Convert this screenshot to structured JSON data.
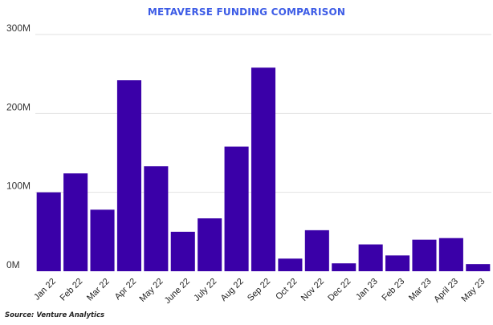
{
  "chart_data": {
    "type": "bar",
    "title": "METAVERSE FUNDING COMPARISON",
    "xlabel": "",
    "ylabel": "",
    "categories": [
      "Jan 22",
      "Feb 22",
      "Mar 22",
      "Apr 22",
      "May 22",
      "June 22",
      "July 22",
      "Aug 22",
      "Sep 22",
      "Oct 22",
      "Nov 22",
      "Dec 22",
      "Jan 23",
      "Feb 23",
      "Mar 23",
      "April 23",
      "May 23"
    ],
    "values": [
      100,
      124,
      78,
      242,
      133,
      50,
      67,
      158,
      258,
      16,
      52,
      10,
      34,
      20,
      40,
      42,
      9
    ],
    "unit": "M",
    "ylim": [
      0,
      300
    ],
    "yticks": [
      0,
      100,
      200,
      300
    ],
    "ytick_labels": [
      "0M",
      "100M",
      "200M",
      "300M"
    ],
    "grid": true,
    "legend": "none"
  },
  "source_note": "Source: Venture Analytics",
  "colors": {
    "bar": "#3a00a8",
    "title": "#3d5ce6",
    "grid": "#e2e2e2"
  }
}
